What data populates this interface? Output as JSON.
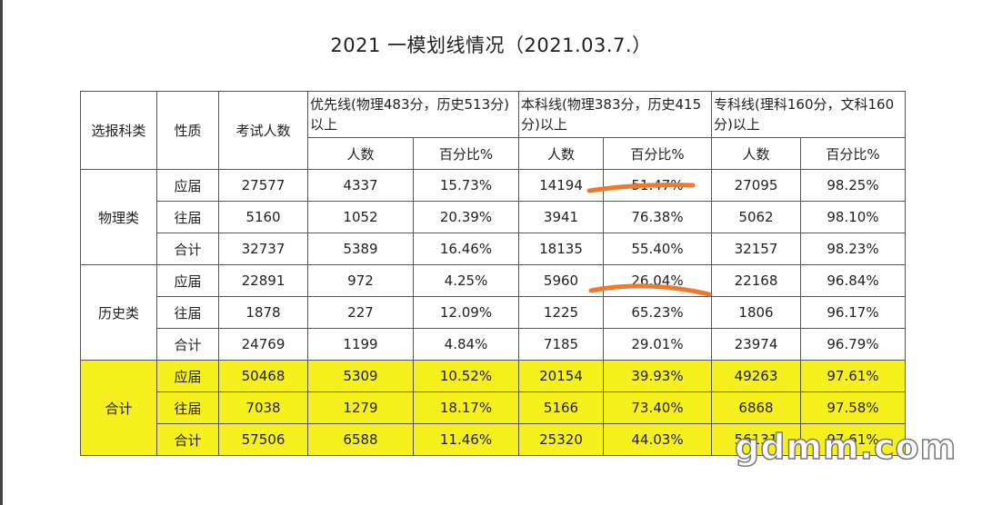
{
  "title": "2021  一模划线情况（2021.03.7.）",
  "table": {
    "header": {
      "category": "选报科类",
      "nature": "性质",
      "examinees": "考试人数",
      "priority_line": "优先线(物理483分，历史513分)以上",
      "undergrad_line": "本科线(物理383分，历史415分)以上",
      "college_line": "专科线(理科160分，文科160分)以上",
      "count": "人数",
      "percent": "百分比%"
    },
    "groups": [
      {
        "name": "物理类",
        "rows": [
          [
            "应届",
            "27577",
            "4337",
            "15.73%",
            "14194",
            "51.47%",
            "27095",
            "98.25%"
          ],
          [
            "往届",
            "5160",
            "1052",
            "20.39%",
            "3941",
            "76.38%",
            "5062",
            "98.10%"
          ],
          [
            "合计",
            "32737",
            "5389",
            "16.46%",
            "18135",
            "55.40%",
            "32157",
            "98.23%"
          ]
        ]
      },
      {
        "name": "历史类",
        "rows": [
          [
            "应届",
            "22891",
            "972",
            "4.25%",
            "5960",
            "26.04%",
            "22168",
            "96.84%"
          ],
          [
            "往届",
            "1878",
            "227",
            "12.09%",
            "1225",
            "65.23%",
            "1806",
            "96.17%"
          ],
          [
            "合计",
            "24769",
            "1199",
            "4.84%",
            "7185",
            "29.01%",
            "23974",
            "96.79%"
          ]
        ]
      },
      {
        "name": "合计",
        "rows": [
          [
            "应届",
            "50468",
            "5309",
            "10.52%",
            "20154",
            "39.93%",
            "49263",
            "97.61%"
          ],
          [
            "往届",
            "7038",
            "1279",
            "18.17%",
            "5166",
            "73.40%",
            "6868",
            "97.58%"
          ],
          [
            "合计",
            "57506",
            "6588",
            "11.46%",
            "25320",
            "44.03%",
            "56131",
            "97.61%"
          ]
        ]
      }
    ]
  },
  "watermark": "gdmm.com"
}
